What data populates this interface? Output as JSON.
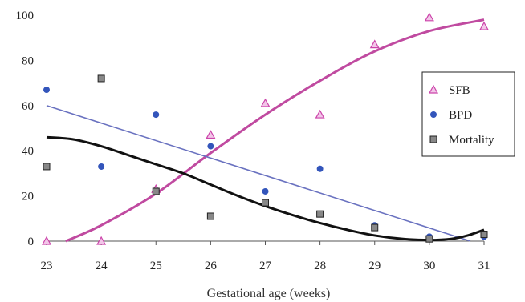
{
  "chart_data": {
    "type": "scatter",
    "title": "",
    "xlabel": "Gestational age (weeks)",
    "ylabel": "",
    "xlim": [
      23,
      31
    ],
    "ylim": [
      0,
      100
    ],
    "x_ticks": [
      "23",
      "24",
      "25",
      "26",
      "27",
      "28",
      "29",
      "30",
      "31"
    ],
    "y_ticks": [
      "0",
      "20",
      "40",
      "60",
      "80",
      "100"
    ],
    "grid": false,
    "legend_position": "right",
    "series": [
      {
        "name": "SFB",
        "marker": "triangle",
        "color": "#cc44aa",
        "points": [
          {
            "x": 23,
            "y": 0
          },
          {
            "x": 24,
            "y": 0
          },
          {
            "x": 25,
            "y": 23
          },
          {
            "x": 26,
            "y": 47
          },
          {
            "x": 27,
            "y": 61
          },
          {
            "x": 28,
            "y": 56
          },
          {
            "x": 29,
            "y": 87
          },
          {
            "x": 30,
            "y": 99
          },
          {
            "x": 31,
            "y": 95
          }
        ]
      },
      {
        "name": "BPD",
        "marker": "circle",
        "color": "#3355bb",
        "points": [
          {
            "x": 23,
            "y": 67
          },
          {
            "x": 24,
            "y": 33
          },
          {
            "x": 25,
            "y": 56
          },
          {
            "x": 26,
            "y": 42
          },
          {
            "x": 27,
            "y": 22
          },
          {
            "x": 28,
            "y": 32
          },
          {
            "x": 29,
            "y": 7
          },
          {
            "x": 30,
            "y": 2
          },
          {
            "x": 31,
            "y": 2
          }
        ]
      },
      {
        "name": "Mortality",
        "marker": "square",
        "color": "#888888",
        "points": [
          {
            "x": 23,
            "y": 33
          },
          {
            "x": 24,
            "y": 72
          },
          {
            "x": 25,
            "y": 22
          },
          {
            "x": 26,
            "y": 11
          },
          {
            "x": 27,
            "y": 17
          },
          {
            "x": 28,
            "y": 12
          },
          {
            "x": 29,
            "y": 6
          },
          {
            "x": 30,
            "y": 1
          },
          {
            "x": 31,
            "y": 3
          }
        ]
      }
    ],
    "trendlines": [
      {
        "series": "SFB",
        "color": "#c04aa0",
        "points": [
          {
            "x": 23.35,
            "y": 0
          },
          {
            "x": 24,
            "y": 7
          },
          {
            "x": 25,
            "y": 21
          },
          {
            "x": 26,
            "y": 39
          },
          {
            "x": 27,
            "y": 56
          },
          {
            "x": 28,
            "y": 71
          },
          {
            "x": 29,
            "y": 84
          },
          {
            "x": 30,
            "y": 93
          },
          {
            "x": 31,
            "y": 98
          }
        ]
      },
      {
        "series": "BPD",
        "color": "#6a72c0",
        "points": [
          {
            "x": 23,
            "y": 60
          },
          {
            "x": 30.75,
            "y": 0
          }
        ]
      },
      {
        "series": "Mortality",
        "color": "#111111",
        "points": [
          {
            "x": 23,
            "y": 46
          },
          {
            "x": 23.5,
            "y": 45
          },
          {
            "x": 24,
            "y": 42
          },
          {
            "x": 24.5,
            "y": 38
          },
          {
            "x": 25,
            "y": 34
          },
          {
            "x": 25.5,
            "y": 30
          },
          {
            "x": 26,
            "y": 25
          },
          {
            "x": 26.5,
            "y": 20
          },
          {
            "x": 27,
            "y": 15.5
          },
          {
            "x": 27.5,
            "y": 11.5
          },
          {
            "x": 28,
            "y": 8
          },
          {
            "x": 28.5,
            "y": 5
          },
          {
            "x": 29,
            "y": 2.5
          },
          {
            "x": 29.5,
            "y": 1
          },
          {
            "x": 30,
            "y": 0.5
          },
          {
            "x": 30.4,
            "y": 1
          },
          {
            "x": 30.7,
            "y": 2.5
          },
          {
            "x": 31,
            "y": 5
          }
        ]
      }
    ]
  }
}
